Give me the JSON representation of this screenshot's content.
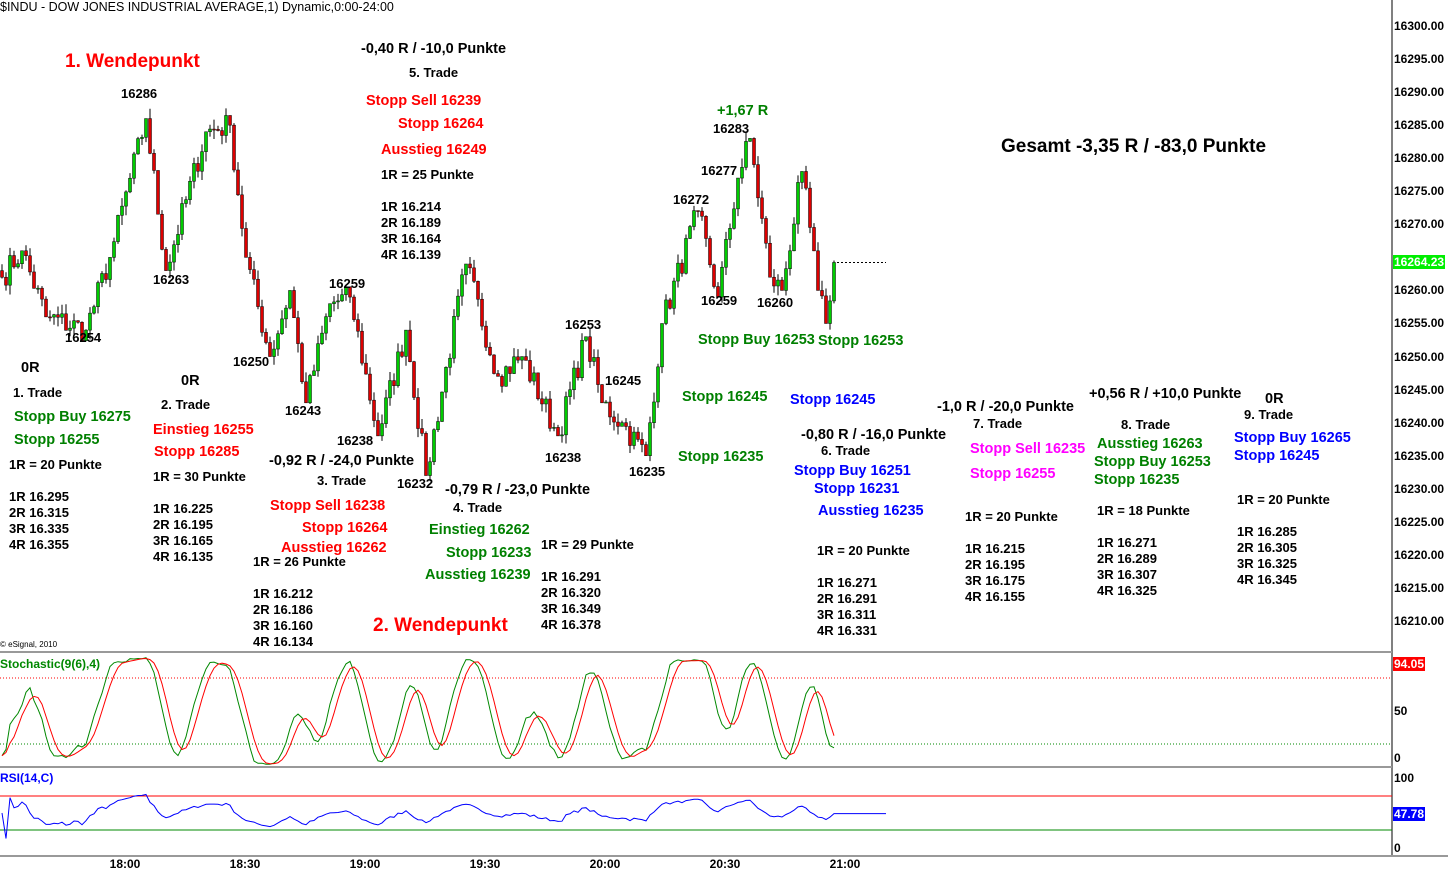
{
  "title": "$INDU - DOW JONES INDUSTRIAL AVERAGE,1) Dynamic,0:00-24:00",
  "copyright": "© eSignal, 2010",
  "colors": {
    "up": "#00cc00",
    "down": "#dd0000",
    "red": "#ff0000",
    "green": "#008800",
    "blue": "#0000ff",
    "magenta": "#ff00ff",
    "last_price_bg": "#00ee00",
    "stoch_bg": "#ff0000",
    "rsi_bg": "#0000ff"
  },
  "labels": [
    {
      "text": "1. Wendepunkt",
      "color": "red",
      "size": "huge"
    },
    {
      "text": "16286"
    },
    {
      "text": "-0,40 R / -10,0 Punkte",
      "size": "big"
    },
    {
      "text": "5. Trade"
    },
    {
      "text": "Stopp Sell 16239",
      "color": "red",
      "size": "big"
    },
    {
      "text": "Stopp 16264",
      "color": "red",
      "size": "big"
    },
    {
      "text": "Ausstieg 16249",
      "color": "red",
      "size": "big"
    },
    {
      "text": "1R = 25 Punkte"
    },
    {
      "text": "1R 16.214"
    },
    {
      "text": "2R 16.189"
    },
    {
      "text": "3R 16.164"
    },
    {
      "text": "4R 16.139"
    },
    {
      "text": "+1,67 R",
      "color": "green",
      "size": "big"
    },
    {
      "text": "16283"
    },
    {
      "text": "16277"
    },
    {
      "text": "16272"
    },
    {
      "text": "Gesamt -3,35 R / -83,0 Punkte",
      "size": "huge"
    },
    {
      "text": "16263"
    },
    {
      "text": "16259"
    },
    {
      "text": "16254"
    },
    {
      "text": "16250"
    },
    {
      "text": "16253"
    },
    {
      "text": "16259"
    },
    {
      "text": "16260"
    },
    {
      "text": "Stopp Buy 16253",
      "color": "green",
      "size": "big"
    },
    {
      "text": "Stopp 16253",
      "color": "green",
      "size": "big"
    },
    {
      "text": "0R",
      "size": "big"
    },
    {
      "text": "1. Trade"
    },
    {
      "text": "Stopp Buy 16275",
      "color": "green",
      "size": "big"
    },
    {
      "text": "Stopp 16255",
      "color": "green",
      "size": "big"
    },
    {
      "text": "1R = 20 Punkte"
    },
    {
      "text": "1R 16.295"
    },
    {
      "text": "2R 16.315"
    },
    {
      "text": "3R 16.335"
    },
    {
      "text": "4R 16.355"
    },
    {
      "text": "0R",
      "size": "big"
    },
    {
      "text": "2. Trade"
    },
    {
      "text": "Einstieg 16255",
      "color": "red",
      "size": "big"
    },
    {
      "text": "Stopp 16285",
      "color": "red",
      "size": "big"
    },
    {
      "text": "1R = 30 Punkte"
    },
    {
      "text": "1R 16.225"
    },
    {
      "text": "2R 16.195"
    },
    {
      "text": "3R 16.165"
    },
    {
      "text": "4R 16.135"
    },
    {
      "text": "16243"
    },
    {
      "text": "16238"
    },
    {
      "text": "-0,92 R / -24,0 Punkte",
      "size": "big"
    },
    {
      "text": "3. Trade"
    },
    {
      "text": "16232"
    },
    {
      "text": "Stopp Sell 16238",
      "color": "red",
      "size": "big"
    },
    {
      "text": "Stopp 16264",
      "color": "red",
      "size": "big"
    },
    {
      "text": "Ausstieg 16262",
      "color": "red",
      "size": "big"
    },
    {
      "text": "1R = 26 Punkte"
    },
    {
      "text": "1R 16.212"
    },
    {
      "text": "2R 16.186"
    },
    {
      "text": "3R 16.160"
    },
    {
      "text": "4R 16.134"
    },
    {
      "text": "16245"
    },
    {
      "text": "16238"
    },
    {
      "text": "16235"
    },
    {
      "text": "-0,79 R / -23,0 Punkte",
      "size": "big"
    },
    {
      "text": "4. Trade"
    },
    {
      "text": "Einstieg 16262",
      "color": "green",
      "size": "big"
    },
    {
      "text": "Stopp 16233",
      "color": "green",
      "size": "big"
    },
    {
      "text": "Ausstieg 16239",
      "color": "green",
      "size": "big"
    },
    {
      "text": "1R = 29 Punkte"
    },
    {
      "text": "1R 16.291"
    },
    {
      "text": "2R 16.320"
    },
    {
      "text": "3R 16.349"
    },
    {
      "text": "4R 16.378"
    },
    {
      "text": "2. Wendepunkt",
      "color": "red",
      "size": "huge"
    },
    {
      "text": "Stopp 16245",
      "color": "green",
      "size": "big"
    },
    {
      "text": "Stopp 16235",
      "color": "green",
      "size": "big"
    },
    {
      "text": "Stopp 16245",
      "color": "blue",
      "size": "big"
    },
    {
      "text": "-0,80 R / -16,0 Punkte",
      "size": "big"
    },
    {
      "text": "6. Trade"
    },
    {
      "text": "Stopp Buy 16251",
      "color": "blue",
      "size": "big"
    },
    {
      "text": "Stopp 16231",
      "color": "blue",
      "size": "big"
    },
    {
      "text": "Ausstieg 16235",
      "color": "blue",
      "size": "big"
    },
    {
      "text": "1R = 20 Punkte"
    },
    {
      "text": "1R 16.271"
    },
    {
      "text": "2R 16.291"
    },
    {
      "text": "3R 16.311"
    },
    {
      "text": "4R 16.331"
    },
    {
      "text": "-1,0 R / -20,0 Punkte",
      "size": "big"
    },
    {
      "text": "7. Trade"
    },
    {
      "text": "Stopp Sell 16235",
      "color": "magenta",
      "size": "big"
    },
    {
      "text": "Stopp 16255",
      "color": "magenta",
      "size": "big"
    },
    {
      "text": "1R = 20 Punkte"
    },
    {
      "text": "1R 16.215"
    },
    {
      "text": "2R 16.195"
    },
    {
      "text": "3R 16.175"
    },
    {
      "text": "4R 16.155"
    },
    {
      "text": "+0,56 R / +10,0 Punkte",
      "size": "big"
    },
    {
      "text": "8. Trade"
    },
    {
      "text": "Ausstieg 16263",
      "color": "green",
      "size": "big"
    },
    {
      "text": "Stopp Buy 16253",
      "color": "green",
      "size": "big"
    },
    {
      "text": "Stopp 16235",
      "color": "green",
      "size": "big"
    },
    {
      "text": "1R = 18 Punkte"
    },
    {
      "text": "1R 16.271"
    },
    {
      "text": "2R 16.289"
    },
    {
      "text": "3R 16.307"
    },
    {
      "text": "4R 16.325"
    },
    {
      "text": "0R",
      "size": "big"
    },
    {
      "text": "9. Trade"
    },
    {
      "text": "Stopp Buy 16265",
      "color": "blue",
      "size": "big"
    },
    {
      "text": "Stopp 16245",
      "color": "blue",
      "size": "big"
    },
    {
      "text": "1R = 20 Punkte"
    },
    {
      "text": "1R 16.285"
    },
    {
      "text": "2R 16.305"
    },
    {
      "text": "3R 16.325"
    },
    {
      "text": "4R 16.345"
    }
  ],
  "chart_data": {
    "type": "candlestick",
    "title": "$INDU - DOW JONES INDUSTRIAL AVERAGE,1) Dynamic,0:00-24:00",
    "interval_minutes": 1,
    "ylim": [
      16205,
      16302
    ],
    "y_ticks": [
      "16300.00",
      "16295.00",
      "16290.00",
      "16285.00",
      "16280.00",
      "16275.00",
      "16270.00",
      "16260.00",
      "16255.00",
      "16250.00",
      "16245.00",
      "16240.00",
      "16235.00",
      "16230.00",
      "16225.00",
      "16220.00",
      "16215.00",
      "16210.00"
    ],
    "x_ticks": [
      "18:00",
      "18:30",
      "19:00",
      "19:30",
      "20:00",
      "20:30",
      "21:00"
    ],
    "last_price": "16264.23",
    "swing_points_minutes_from_1730": [
      [
        0,
        16262
      ],
      [
        5,
        16266
      ],
      [
        11,
        16256
      ],
      [
        21,
        16254
      ],
      [
        27,
        16265
      ],
      [
        36,
        16286
      ],
      [
        41,
        16263
      ],
      [
        51,
        16284
      ],
      [
        57,
        16285
      ],
      [
        61,
        16265
      ],
      [
        67,
        16250
      ],
      [
        72,
        16260
      ],
      [
        76,
        16243
      ],
      [
        82,
        16258
      ],
      [
        87,
        16259
      ],
      [
        94,
        16238
      ],
      [
        101,
        16254
      ],
      [
        106,
        16232
      ],
      [
        116,
        16264
      ],
      [
        124,
        16247
      ],
      [
        130,
        16250
      ],
      [
        139,
        16238
      ],
      [
        146,
        16253
      ],
      [
        150,
        16243
      ],
      [
        155,
        16240
      ],
      [
        161,
        16235
      ],
      [
        165,
        16255
      ],
      [
        174,
        16272
      ],
      [
        179,
        16259
      ],
      [
        184,
        16277
      ],
      [
        187,
        16283
      ],
      [
        192,
        16262
      ],
      [
        195,
        16260
      ],
      [
        200,
        16278
      ],
      [
        204,
        16260
      ],
      [
        206,
        16255
      ],
      [
        208,
        16264.23
      ]
    ],
    "indicators": [
      {
        "name": "Stochastic(9(6),4)",
        "last_value": "94.05",
        "levels": [
          80,
          20
        ],
        "axis_ticks": [
          "50",
          "0"
        ]
      },
      {
        "name": "RSI(14,C)",
        "last_value": "47.78",
        "levels": [
          70,
          30
        ],
        "axis_ticks": [
          "100",
          "0"
        ]
      }
    ]
  }
}
